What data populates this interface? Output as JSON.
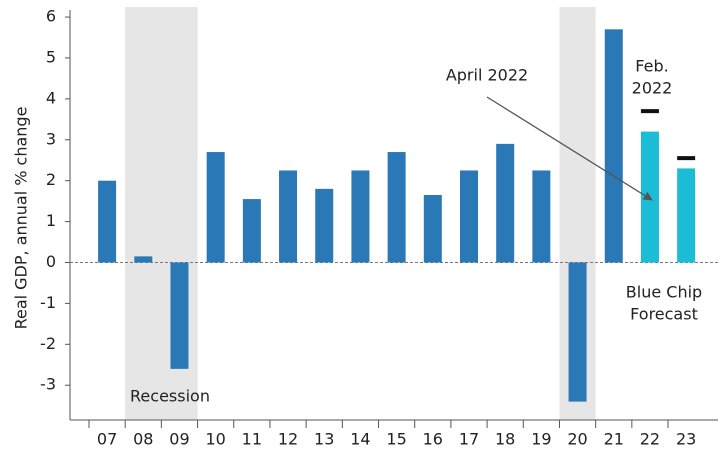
{
  "chart_data": {
    "type": "bar",
    "ylabel": "Real GDP, annual % change",
    "categories": [
      "07",
      "08",
      "09",
      "10",
      "11",
      "12",
      "13",
      "14",
      "15",
      "16",
      "17",
      "18",
      "19",
      "20",
      "21",
      "22",
      "23"
    ],
    "values": [
      2.0,
      0.15,
      -2.6,
      2.7,
      1.55,
      2.25,
      1.8,
      2.25,
      2.7,
      1.65,
      2.25,
      2.9,
      2.25,
      -3.4,
      5.7,
      3.2,
      2.3
    ],
    "colors": [
      "#2a78b6",
      "#2a78b6",
      "#2a78b6",
      "#2a78b6",
      "#2a78b6",
      "#2a78b6",
      "#2a78b6",
      "#2a78b6",
      "#2a78b6",
      "#2a78b6",
      "#2a78b6",
      "#2a78b6",
      "#2a78b6",
      "#2a78b6",
      "#2a78b6",
      "#1bbdd6",
      "#1bbdd6"
    ],
    "feb_2022_values": [
      null,
      null,
      null,
      null,
      null,
      null,
      null,
      null,
      null,
      null,
      null,
      null,
      null,
      null,
      null,
      3.7,
      2.55
    ],
    "shaded": [
      [
        "08",
        "09"
      ],
      [
        "20",
        "20"
      ]
    ],
    "recession_label": "Recession",
    "april_label": "April 2022",
    "feb_label": [
      "Feb.",
      "2022"
    ],
    "forecast_label": [
      "Blue Chip",
      "Forecast"
    ],
    "ylim": [
      -3.85,
      6.05
    ],
    "yticks": [
      -3,
      -2,
      -1,
      0,
      1,
      2,
      3,
      4,
      5,
      6
    ]
  }
}
